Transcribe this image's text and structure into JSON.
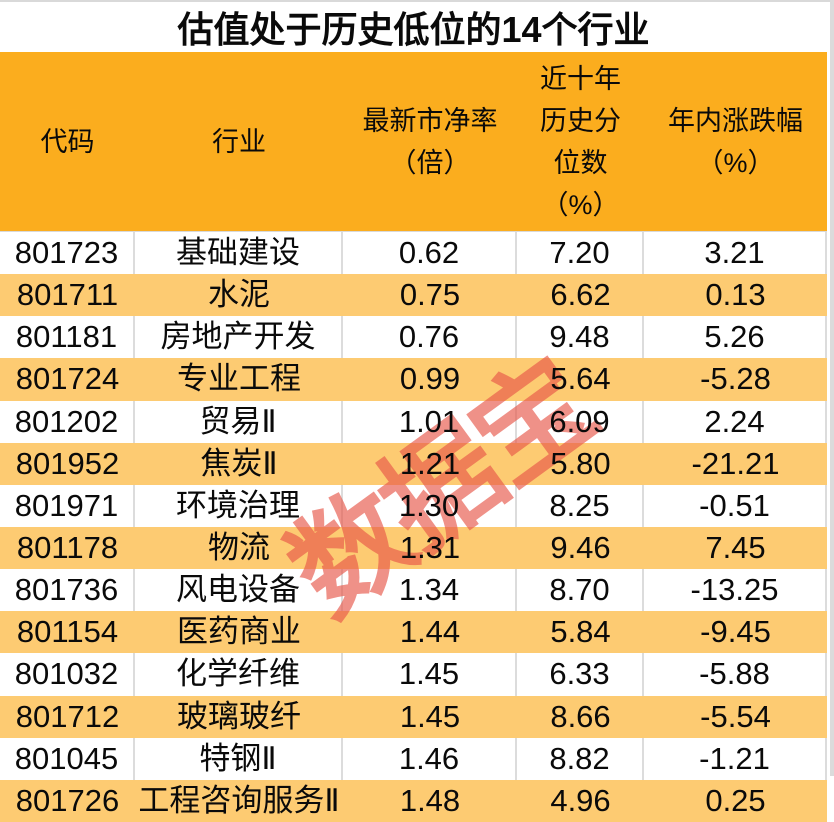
{
  "title": "估值处于历史低位的14个行业",
  "watermark_text": "数据宝",
  "colors": {
    "header_orange": "#FBAD1E",
    "row_alt_orange": "#FDCB72",
    "watermark_red": "#E8574A",
    "grid_gray": "#DCDCDC",
    "edge_strip_gray": "#D9D9D9",
    "text_black": "#0A0A0A"
  },
  "chart_data": {
    "type": "table",
    "title": "估值处于历史低位的14个行业",
    "columns": [
      {
        "key": "code",
        "label": "代码"
      },
      {
        "key": "industry",
        "label": "行业"
      },
      {
        "key": "pb",
        "label": "最新市净率\n（倍）"
      },
      {
        "key": "percentile",
        "label": "近十年\n历史分\n位数\n（%）"
      },
      {
        "key": "ytd",
        "label": "年内涨跌幅\n（%）"
      }
    ],
    "rows": [
      {
        "code": "801723",
        "industry": "基础建设",
        "pb": "0.62",
        "percentile": "7.20",
        "ytd": "3.21"
      },
      {
        "code": "801711",
        "industry": "水泥",
        "pb": "0.75",
        "percentile": "6.62",
        "ytd": "0.13"
      },
      {
        "code": "801181",
        "industry": "房地产开发",
        "pb": "0.76",
        "percentile": "9.48",
        "ytd": "5.26"
      },
      {
        "code": "801724",
        "industry": "专业工程",
        "pb": "0.99",
        "percentile": "5.64",
        "ytd": "-5.28"
      },
      {
        "code": "801202",
        "industry": "贸易Ⅱ",
        "pb": "1.01",
        "percentile": "6.09",
        "ytd": "2.24"
      },
      {
        "code": "801952",
        "industry": "焦炭Ⅱ",
        "pb": "1.21",
        "percentile": "5.80",
        "ytd": "-21.21"
      },
      {
        "code": "801971",
        "industry": "环境治理",
        "pb": "1.30",
        "percentile": "8.25",
        "ytd": "-0.51"
      },
      {
        "code": "801178",
        "industry": "物流",
        "pb": "1.31",
        "percentile": "9.46",
        "ytd": "7.45"
      },
      {
        "code": "801736",
        "industry": "风电设备",
        "pb": "1.34",
        "percentile": "8.70",
        "ytd": "-13.25"
      },
      {
        "code": "801154",
        "industry": "医药商业",
        "pb": "1.44",
        "percentile": "5.84",
        "ytd": "-9.45"
      },
      {
        "code": "801032",
        "industry": "化学纤维",
        "pb": "1.45",
        "percentile": "6.33",
        "ytd": "-5.88"
      },
      {
        "code": "801712",
        "industry": "玻璃玻纤",
        "pb": "1.45",
        "percentile": "8.66",
        "ytd": "-5.54"
      },
      {
        "code": "801045",
        "industry": "特钢Ⅱ",
        "pb": "1.46",
        "percentile": "8.82",
        "ytd": "-1.21"
      },
      {
        "code": "801726",
        "industry": "工程咨询服务Ⅱ",
        "pb": "1.48",
        "percentile": "4.96",
        "ytd": "0.25"
      }
    ]
  }
}
